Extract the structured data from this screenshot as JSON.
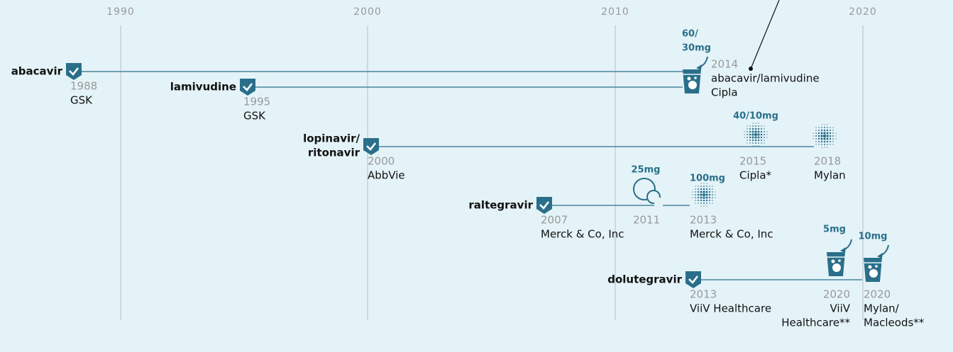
{
  "axis": [
    "1990",
    "2000",
    "2010",
    "2020"
  ],
  "drugs": [
    {
      "name": [
        "abacavir"
      ],
      "events": [
        {
          "year": "1988",
          "company": [
            "GSK"
          ],
          "icon": "check"
        }
      ]
    },
    {
      "name": [
        "lamivudine"
      ],
      "events": [
        {
          "year": "1995",
          "company": [
            "GSK"
          ],
          "icon": "check"
        }
      ]
    },
    {
      "name": [
        "lopinavir/",
        "ritonavir"
      ],
      "events": [
        {
          "year": "2000",
          "company": [
            "AbbVie"
          ],
          "icon": "check"
        },
        {
          "year": "2015",
          "company": [
            "Cipla*"
          ],
          "dose": [
            "40/10mg"
          ],
          "icon": "granules"
        },
        {
          "year": "2018",
          "company": [
            "Mylan"
          ],
          "icon": "granules"
        }
      ]
    },
    {
      "name": [
        "raltegravir"
      ],
      "events": [
        {
          "year": "2007",
          "company": [
            "Merck & Co, Inc"
          ],
          "icon": "check"
        },
        {
          "year": "2011",
          "dose": [
            "25mg"
          ],
          "icon": "chewable"
        },
        {
          "year": "2013",
          "company": [
            "Merck & Co, Inc"
          ],
          "dose": [
            "100mg"
          ],
          "icon": "granules"
        }
      ]
    },
    {
      "name": [
        "dolutegravir"
      ],
      "events": [
        {
          "year": "2013",
          "company": [
            "ViiV Healthcare"
          ],
          "icon": "check"
        },
        {
          "year": "2020",
          "company": [
            "ViiV",
            "Healthcare**"
          ],
          "dose": [
            "5mg"
          ],
          "icon": "cup"
        },
        {
          "year": "2020",
          "company": [
            "Mylan/",
            "Macleods**"
          ],
          "dose": [
            "10mg"
          ],
          "icon": "cup"
        }
      ]
    }
  ],
  "combination": {
    "year": "2014",
    "name": "abacavir/lamivudine",
    "company": [
      "Cipla"
    ],
    "dose": [
      "60/",
      "30mg"
    ],
    "icon": "cup"
  }
}
